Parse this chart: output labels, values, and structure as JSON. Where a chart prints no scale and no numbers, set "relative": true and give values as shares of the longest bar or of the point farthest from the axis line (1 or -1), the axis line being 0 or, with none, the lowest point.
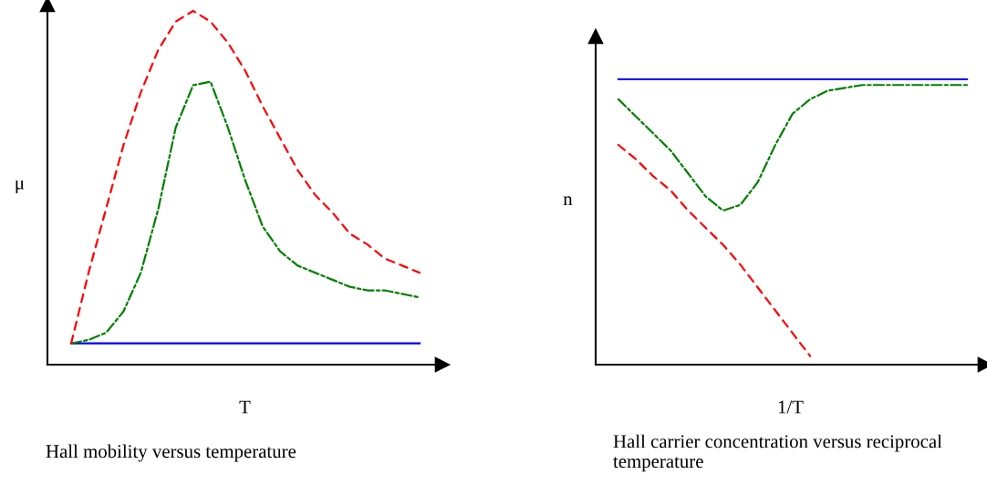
{
  "chart_data": [
    {
      "type": "line",
      "relative": true,
      "title": "Hall mobility versus temperature",
      "xlabel": "T",
      "ylabel": "μ",
      "categories": [
        null,
        null,
        null,
        null,
        null,
        null,
        null,
        null,
        null,
        null,
        null,
        null,
        null,
        null,
        null,
        null,
        null,
        null,
        null,
        null,
        null
      ],
      "legend": false,
      "series": [
        {
          "color": "#ff0000",
          "line_style": "dashed",
          "values": [
            0.06,
            0.26,
            0.44,
            0.62,
            0.77,
            0.89,
            0.97,
            1.0,
            0.97,
            0.91,
            0.83,
            0.73,
            0.64,
            0.55,
            0.48,
            0.43,
            0.37,
            0.34,
            0.3,
            0.28,
            0.26
          ]
        },
        {
          "color": "#008000",
          "line_style": "dashdot",
          "values": [
            0.06,
            0.07,
            0.09,
            0.15,
            0.26,
            0.44,
            0.67,
            0.79,
            0.8,
            0.67,
            0.52,
            0.39,
            0.32,
            0.28,
            0.26,
            0.24,
            0.22,
            0.21,
            0.21,
            0.2,
            0.19
          ]
        },
        {
          "color": "#0000ff",
          "line_style": "solid",
          "values": [
            0.06,
            0.06,
            0.06,
            0.06,
            0.06,
            0.06,
            0.06,
            0.06,
            0.06,
            0.06,
            0.06,
            0.06,
            0.06,
            0.06,
            0.06,
            0.06,
            0.06,
            0.06,
            0.06,
            0.06,
            0.06
          ]
        }
      ]
    },
    {
      "type": "line",
      "relative": true,
      "title": "Hall carrier concentration versus reciprocal temperature",
      "xlabel": "1/T",
      "ylabel": "n",
      "categories": [
        null,
        null,
        null,
        null,
        null,
        null,
        null,
        null,
        null,
        null,
        null,
        null,
        null,
        null,
        null,
        null,
        null,
        null,
        null,
        null,
        null
      ],
      "legend": false,
      "series": [
        {
          "color": "#ff0000",
          "line_style": "dashed",
          "values": [
            0.77,
            0.72,
            0.66,
            0.61,
            0.54,
            0.48,
            0.42,
            0.35,
            0.27,
            0.19,
            0.11,
            0.03,
            null,
            null,
            null,
            null,
            null,
            null,
            null,
            null,
            null
          ]
        },
        {
          "color": "#008000",
          "line_style": "dashdot",
          "values": [
            0.93,
            0.87,
            0.81,
            0.75,
            0.67,
            0.59,
            0.54,
            0.56,
            0.64,
            0.77,
            0.88,
            0.93,
            0.96,
            0.97,
            0.98,
            0.98,
            0.98,
            0.98,
            0.98,
            0.98,
            0.98
          ]
        },
        {
          "color": "#0000ff",
          "line_style": "solid",
          "values": [
            1.0,
            1.0,
            1.0,
            1.0,
            1.0,
            1.0,
            1.0,
            1.0,
            1.0,
            1.0,
            1.0,
            1.0,
            1.0,
            1.0,
            1.0,
            1.0,
            1.0,
            1.0,
            1.0,
            1.0,
            1.0
          ]
        }
      ]
    }
  ]
}
